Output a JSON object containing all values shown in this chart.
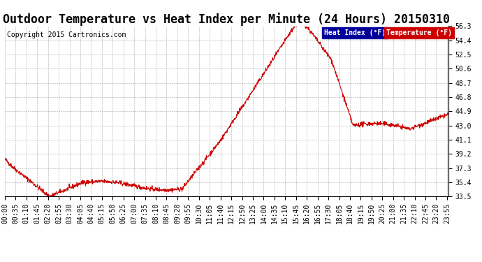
{
  "title": "Outdoor Temperature vs Heat Index per Minute (24 Hours) 20150310",
  "copyright": "Copyright 2015 Cartronics.com",
  "yticks": [
    33.5,
    35.4,
    37.3,
    39.2,
    41.1,
    43.0,
    44.9,
    46.8,
    48.7,
    50.6,
    52.5,
    54.4,
    56.3
  ],
  "ylim": [
    33.5,
    56.3
  ],
  "line_color": "#cc0000",
  "legend_label_heat": "Heat Index (°F)",
  "legend_label_temp": "Temperature (°F)",
  "legend_heat_bg": "#000099",
  "legend_temp_bg": "#cc0000",
  "legend_text_color": "#ffffff",
  "background_color": "#ffffff",
  "grid_color": "#aaaaaa",
  "title_fontsize": 12,
  "copyright_fontsize": 7,
  "tick_fontsize": 7,
  "x_tick_interval": 35,
  "total_minutes": 1440
}
